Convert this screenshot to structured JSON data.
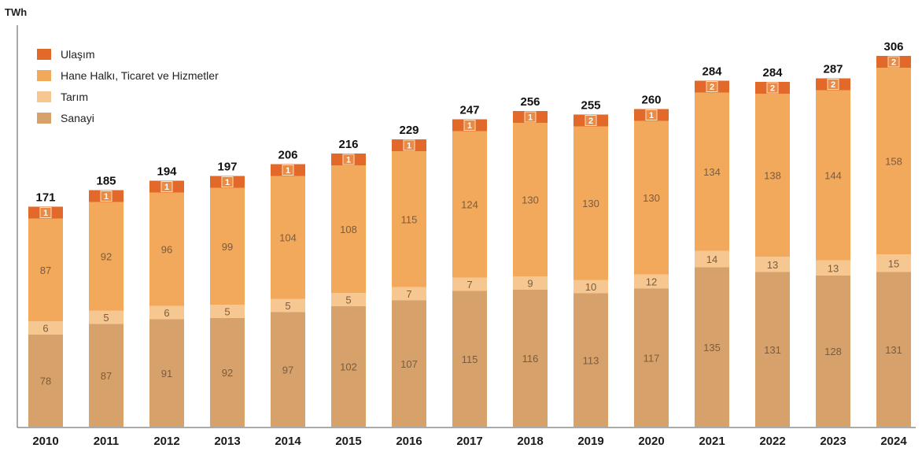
{
  "chart_data": {
    "type": "bar",
    "stacked": true,
    "ylabel": "TWh",
    "grid": false,
    "legend_position": "top-left",
    "categories": [
      "2010",
      "2011",
      "2012",
      "2013",
      "2014",
      "2015",
      "2016",
      "2017",
      "2018",
      "2019",
      "2020",
      "2021",
      "2022",
      "2023",
      "2024"
    ],
    "series": [
      {
        "name": "Sanayi",
        "color": "#d7a16b",
        "values": [
          78,
          87,
          91,
          92,
          97,
          102,
          107,
          115,
          116,
          113,
          117,
          135,
          131,
          128,
          131
        ]
      },
      {
        "name": "Tarım",
        "color": "#f6c790",
        "values": [
          6,
          5,
          6,
          5,
          5,
          5,
          7,
          7,
          9,
          10,
          12,
          14,
          13,
          13,
          15
        ]
      },
      {
        "name": "Hane Halkı, Ticaret ve Hizmetler",
        "color": "#f2a95c",
        "values": [
          87,
          92,
          96,
          99,
          104,
          108,
          115,
          124,
          130,
          130,
          130,
          134,
          138,
          144,
          158
        ]
      },
      {
        "name": "Ulaşım",
        "color": "#e2692a",
        "values": [
          1,
          1,
          1,
          1,
          1,
          1,
          1,
          1,
          1,
          2,
          1,
          2,
          2,
          2,
          2
        ]
      }
    ],
    "totals": [
      171,
      185,
      194,
      197,
      206,
      216,
      229,
      247,
      256,
      255,
      260,
      284,
      284,
      287,
      306
    ]
  }
}
